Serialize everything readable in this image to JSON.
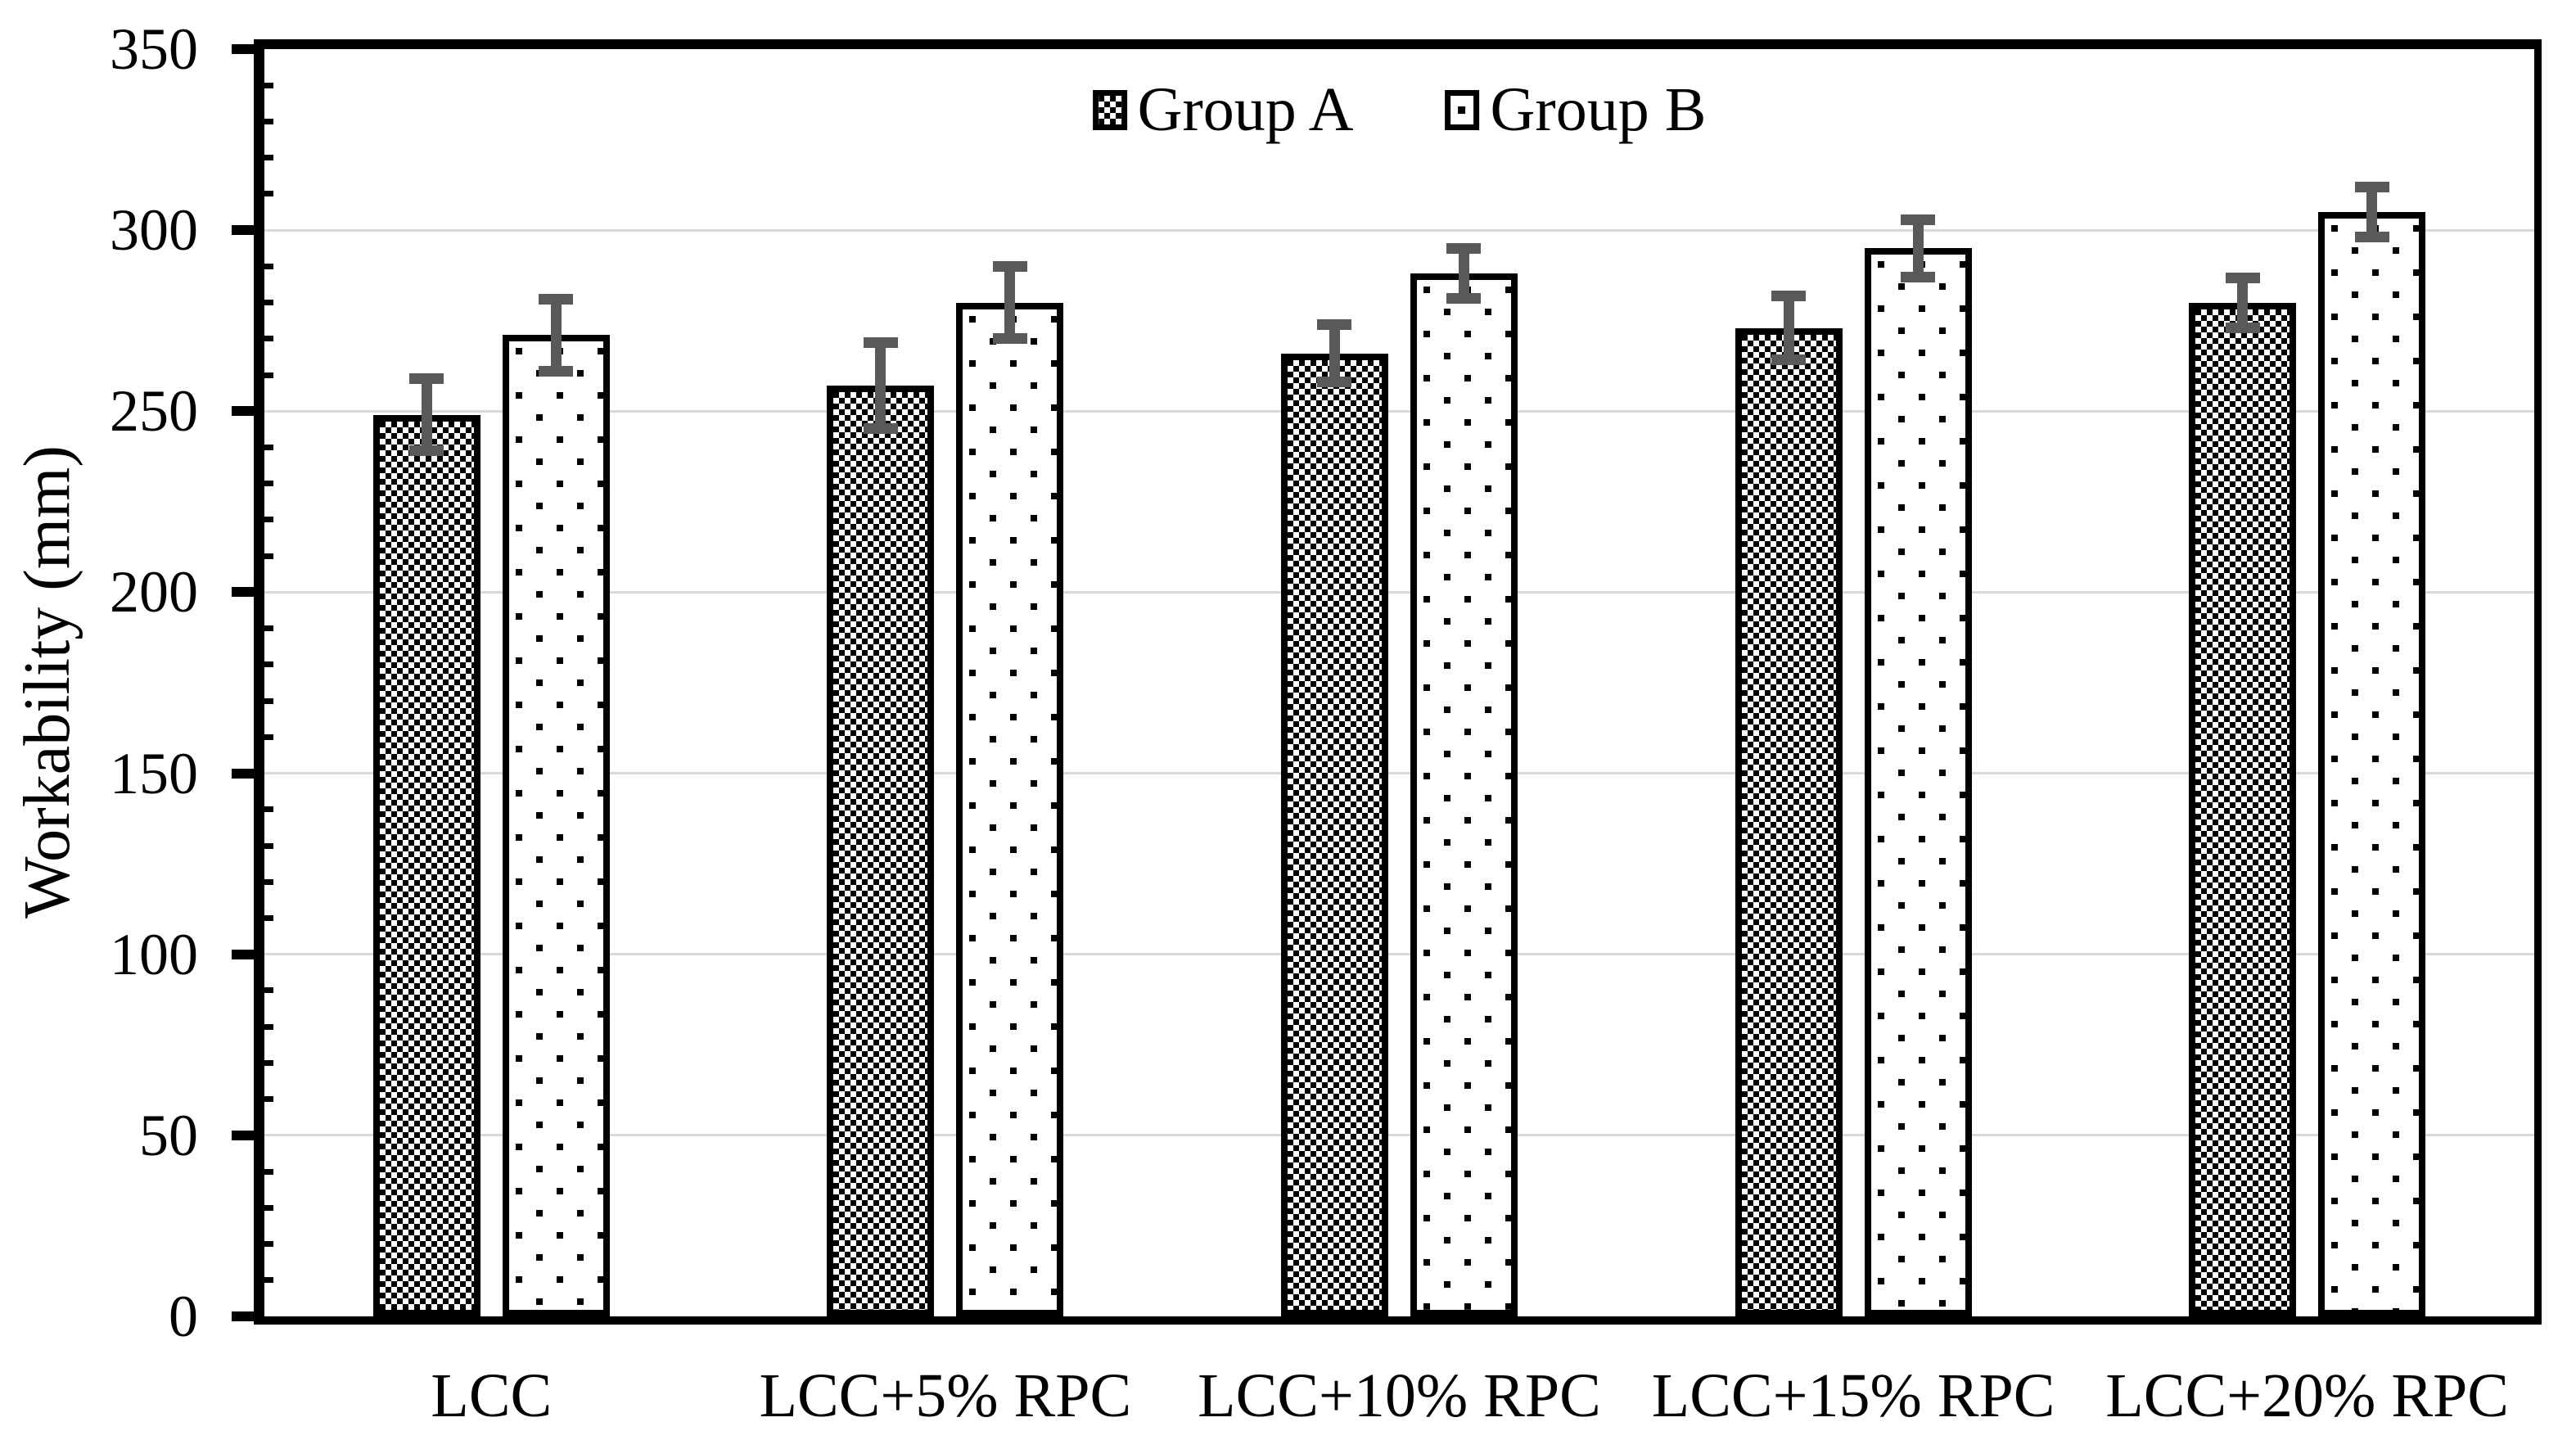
{
  "chart_data": {
    "type": "bar",
    "title": "",
    "xlabel": "",
    "ylabel": "Workability (mm)",
    "ylim": [
      0,
      350
    ],
    "ytick_step": 50,
    "yticks": [
      0,
      50,
      100,
      150,
      200,
      250,
      300,
      350
    ],
    "minor_tick_step": 10,
    "grid": true,
    "legend_position": "top-center-inside",
    "categories": [
      "LCC",
      "LCC+5% RPC",
      "LCC+10% RPC",
      "LCC+15% RPC",
      "LCC+20% RPC"
    ],
    "series": [
      {
        "name": "Group A",
        "pattern": "checkerboard",
        "values": [
          249,
          257,
          266,
          273,
          280
        ],
        "errors": [
          10,
          12,
          8,
          9,
          7
        ]
      },
      {
        "name": "Group B",
        "pattern": "square-dots",
        "values": [
          271,
          280,
          288,
          295,
          305
        ],
        "errors": [
          10,
          10,
          7,
          8,
          7
        ]
      }
    ]
  },
  "legend": {
    "items": [
      {
        "label": "Group A",
        "swatch": "checkerboard-swatch"
      },
      {
        "label": "Group B",
        "swatch": "dot-swatch"
      }
    ]
  },
  "colors": {
    "background": "#ffffff",
    "bar_fill": "#ffffff",
    "bar_border": "#000000",
    "pattern_ink": "#000000",
    "error_bar": "#595959",
    "gridline": "#d9d9d9",
    "axis": "#000000",
    "text": "#000000"
  }
}
